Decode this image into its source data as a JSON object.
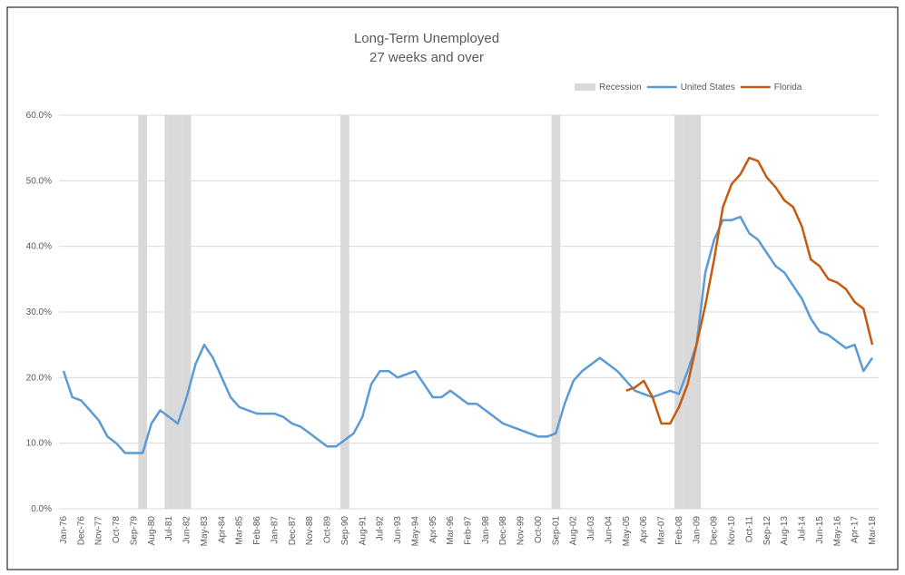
{
  "chart_data": {
    "type": "line",
    "title": "Long-Term Unemployed",
    "subtitle": "27 weeks and over",
    "categories": [
      "Jan-76",
      null,
      "Dec-76",
      null,
      "Nov-77",
      null,
      "Oct-78",
      null,
      "Sep-79",
      null,
      "Aug-80",
      null,
      "Jul-81",
      null,
      "Jun-82",
      null,
      "May-83",
      null,
      "Apr-84",
      null,
      "Mar-85",
      null,
      "Feb-86",
      null,
      "Jan-87",
      null,
      "Dec-87",
      null,
      "Nov-88",
      null,
      "Oct-89",
      null,
      "Sep-90",
      null,
      "Aug-91",
      null,
      "Jul-92",
      null,
      "Jun-93",
      null,
      "May-94",
      null,
      "Apr-95",
      null,
      "Mar-96",
      null,
      "Feb-97",
      null,
      "Jan-98",
      null,
      "Dec-98",
      null,
      "Nov-99",
      null,
      "Oct-00",
      null,
      "Sep-01",
      null,
      "Aug-02",
      null,
      "Jul-03",
      null,
      "Jun-04",
      null,
      "May-05",
      null,
      "Apr-06",
      null,
      "Mar-07",
      null,
      "Feb-08",
      null,
      "Jan-09",
      null,
      "Dec-09",
      null,
      "Nov-10",
      null,
      "Oct-11",
      null,
      "Sep-12",
      null,
      "Aug-13",
      null,
      "Jul-14",
      null,
      "Jun-15",
      null,
      "May-16",
      null,
      "Apr-17",
      null,
      "Mar-18"
    ],
    "series": [
      {
        "name": "Recession",
        "kind": "bar",
        "color": "#d9d9d9",
        "values": [
          null,
          null,
          null,
          null,
          null,
          null,
          null,
          null,
          null,
          60,
          null,
          null,
          60,
          60,
          60,
          null,
          null,
          null,
          null,
          null,
          null,
          null,
          null,
          null,
          null,
          null,
          null,
          null,
          null,
          null,
          null,
          null,
          60,
          null,
          null,
          null,
          null,
          null,
          null,
          null,
          null,
          null,
          null,
          null,
          null,
          null,
          null,
          null,
          null,
          null,
          null,
          null,
          null,
          null,
          null,
          null,
          60,
          null,
          null,
          null,
          null,
          null,
          null,
          null,
          null,
          null,
          null,
          null,
          null,
          null,
          60,
          60,
          60,
          null,
          null,
          null,
          null,
          null,
          null,
          null,
          null,
          null,
          null,
          null,
          null,
          null,
          null,
          null,
          null,
          null,
          null,
          null,
          null
        ]
      },
      {
        "name": "United States",
        "kind": "line",
        "color": "#5b9bd5",
        "values": [
          21,
          17,
          16.5,
          15,
          13.5,
          11,
          10,
          8.5,
          8.5,
          8.5,
          13,
          15,
          14,
          13,
          17,
          22,
          25,
          23,
          20,
          17,
          15.5,
          15,
          14.5,
          14.5,
          14.5,
          14,
          13,
          12.5,
          11.5,
          10.5,
          9.5,
          9.5,
          10.5,
          11.5,
          14,
          19,
          21,
          21,
          20,
          20.5,
          21,
          19,
          17,
          17,
          18,
          17,
          16,
          16,
          15,
          14,
          13,
          12.5,
          12,
          11.5,
          11,
          11,
          11.5,
          16,
          19.5,
          21,
          22,
          23,
          22,
          21,
          19.5,
          18,
          17.5,
          17,
          17.5,
          18,
          17.5,
          21,
          25,
          36,
          41,
          44,
          44,
          44.5,
          42,
          41,
          39,
          37,
          36,
          34,
          32,
          29,
          27,
          26.5,
          25.5,
          24.5,
          25,
          21,
          23
        ]
      },
      {
        "name": "Florida",
        "kind": "line",
        "color": "#c55a11",
        "values": [
          null,
          null,
          null,
          null,
          null,
          null,
          null,
          null,
          null,
          null,
          null,
          null,
          null,
          null,
          null,
          null,
          null,
          null,
          null,
          null,
          null,
          null,
          null,
          null,
          null,
          null,
          null,
          null,
          null,
          null,
          null,
          null,
          null,
          null,
          null,
          null,
          null,
          null,
          null,
          null,
          null,
          null,
          null,
          null,
          null,
          null,
          null,
          null,
          null,
          null,
          null,
          null,
          null,
          null,
          null,
          null,
          null,
          null,
          null,
          null,
          null,
          null,
          null,
          null,
          18,
          18.5,
          19.5,
          17,
          13,
          13,
          15.5,
          19,
          25,
          31,
          38,
          46,
          49.5,
          51,
          53.5,
          53,
          50.5,
          49,
          47,
          46,
          43,
          38,
          37,
          35,
          34.5,
          33.5,
          31.5,
          30.5,
          25
        ]
      }
    ],
    "ylim": [
      0,
      60
    ],
    "yticks": [
      {
        "value": 0,
        "label": "0.0%"
      },
      {
        "value": 10,
        "label": "10.0%"
      },
      {
        "value": 20,
        "label": "20.0%"
      },
      {
        "value": 30,
        "label": "30.0%"
      },
      {
        "value": 40,
        "label": "40.0%"
      },
      {
        "value": 50,
        "label": "50.0%"
      },
      {
        "value": 60,
        "label": "60.0%"
      }
    ],
    "grid": true,
    "legend": "top-right"
  }
}
